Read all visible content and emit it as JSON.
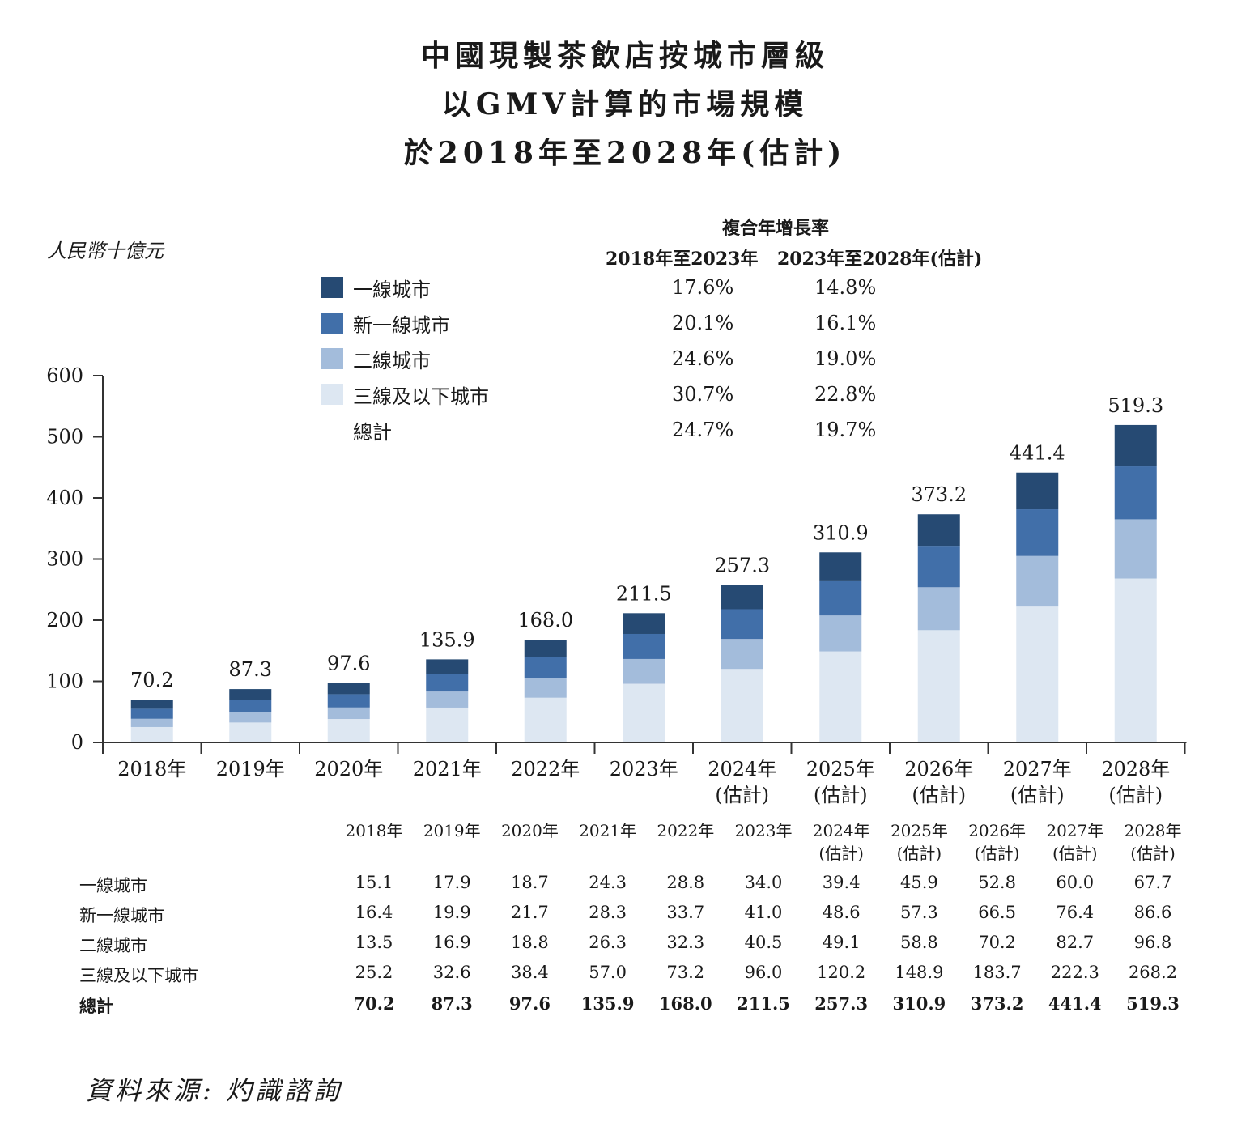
{
  "title": [
    "中國現製茶飲店按城市層級",
    "以GMV計算的市場規模",
    "於2018年至2028年(估計)"
  ],
  "unit": "人民幣十億元",
  "cagr": {
    "title": "複合年增長率",
    "period1": "2018年至2023年",
    "period2": "2023年至2028年(估計)"
  },
  "legend": [
    {
      "label": "一線城市",
      "color": "#264a73",
      "cagr1": "17.6%",
      "cagr2": "14.8%"
    },
    {
      "label": "新一線城市",
      "color": "#416fa9",
      "cagr1": "20.1%",
      "cagr2": "16.1%"
    },
    {
      "label": "二線城市",
      "color": "#a3bcdb",
      "cagr1": "24.6%",
      "cagr2": "19.0%"
    },
    {
      "label": "三線及以下城市",
      "color": "#dde7f2",
      "cagr1": "30.7%",
      "cagr2": "22.8%"
    },
    {
      "label": "總計",
      "color": null,
      "cagr1": "24.7%",
      "cagr2": "19.7%"
    }
  ],
  "chart_data": {
    "type": "bar",
    "stacked": true,
    "categories": [
      "2018年",
      "2019年",
      "2020年",
      "2021年",
      "2022年",
      "2023年",
      "2024年(估計)",
      "2025年(估計)",
      "2026年(估計)",
      "2027年(估計)",
      "2028年(估計)"
    ],
    "series": [
      {
        "name": "三線及以下城市",
        "color": "#dde7f2",
        "values": [
          25.2,
          32.6,
          38.4,
          57.0,
          73.2,
          96.0,
          120.2,
          148.9,
          183.7,
          222.3,
          268.2
        ]
      },
      {
        "name": "二線城市",
        "color": "#a3bcdb",
        "values": [
          13.5,
          16.9,
          18.8,
          26.3,
          32.3,
          40.5,
          49.1,
          58.8,
          70.2,
          82.7,
          96.8
        ]
      },
      {
        "name": "新一線城市",
        "color": "#416fa9",
        "values": [
          16.4,
          19.9,
          21.7,
          28.3,
          33.7,
          41.0,
          48.6,
          57.3,
          66.5,
          76.4,
          86.6
        ]
      },
      {
        "name": "一線城市",
        "color": "#264a73",
        "values": [
          15.1,
          17.9,
          18.7,
          24.3,
          28.8,
          34.0,
          39.4,
          45.9,
          52.8,
          60.0,
          67.7
        ]
      }
    ],
    "totals": [
      70.2,
      87.3,
      97.6,
      135.9,
      168.0,
      211.5,
      257.3,
      310.9,
      373.2,
      441.4,
      519.3
    ],
    "ylim": [
      0,
      600
    ],
    "yticks": [
      0,
      100,
      200,
      300,
      400,
      500,
      600
    ],
    "ylabel": "人民幣十億元"
  },
  "table": {
    "headers": [
      [
        "2018年",
        ""
      ],
      [
        "2019年",
        ""
      ],
      [
        "2020年",
        ""
      ],
      [
        "2021年",
        ""
      ],
      [
        "2022年",
        ""
      ],
      [
        "2023年",
        ""
      ],
      [
        "2024年",
        "(估計)"
      ],
      [
        "2025年",
        "(估計)"
      ],
      [
        "2026年",
        "(估計)"
      ],
      [
        "2027年",
        "(估計)"
      ],
      [
        "2028年",
        "(估計)"
      ]
    ],
    "rows": [
      {
        "label": "一線城市",
        "bold": false,
        "values": [
          "15.1",
          "17.9",
          "18.7",
          "24.3",
          "28.8",
          "34.0",
          "39.4",
          "45.9",
          "52.8",
          "60.0",
          "67.7"
        ]
      },
      {
        "label": "新一線城市",
        "bold": false,
        "values": [
          "16.4",
          "19.9",
          "21.7",
          "28.3",
          "33.7",
          "41.0",
          "48.6",
          "57.3",
          "66.5",
          "76.4",
          "86.6"
        ]
      },
      {
        "label": "二線城市",
        "bold": false,
        "values": [
          "13.5",
          "16.9",
          "18.8",
          "26.3",
          "32.3",
          "40.5",
          "49.1",
          "58.8",
          "70.2",
          "82.7",
          "96.8"
        ]
      },
      {
        "label": "三線及以下城市",
        "bold": false,
        "values": [
          "25.2",
          "32.6",
          "38.4",
          "57.0",
          "73.2",
          "96.0",
          "120.2",
          "148.9",
          "183.7",
          "222.3",
          "268.2"
        ]
      },
      {
        "label": "總計",
        "bold": true,
        "values": [
          "70.2",
          "87.3",
          "97.6",
          "135.9",
          "168.0",
          "211.5",
          "257.3",
          "310.9",
          "373.2",
          "441.4",
          "519.3"
        ]
      }
    ]
  },
  "source": "資料來源: 灼識諮詢"
}
